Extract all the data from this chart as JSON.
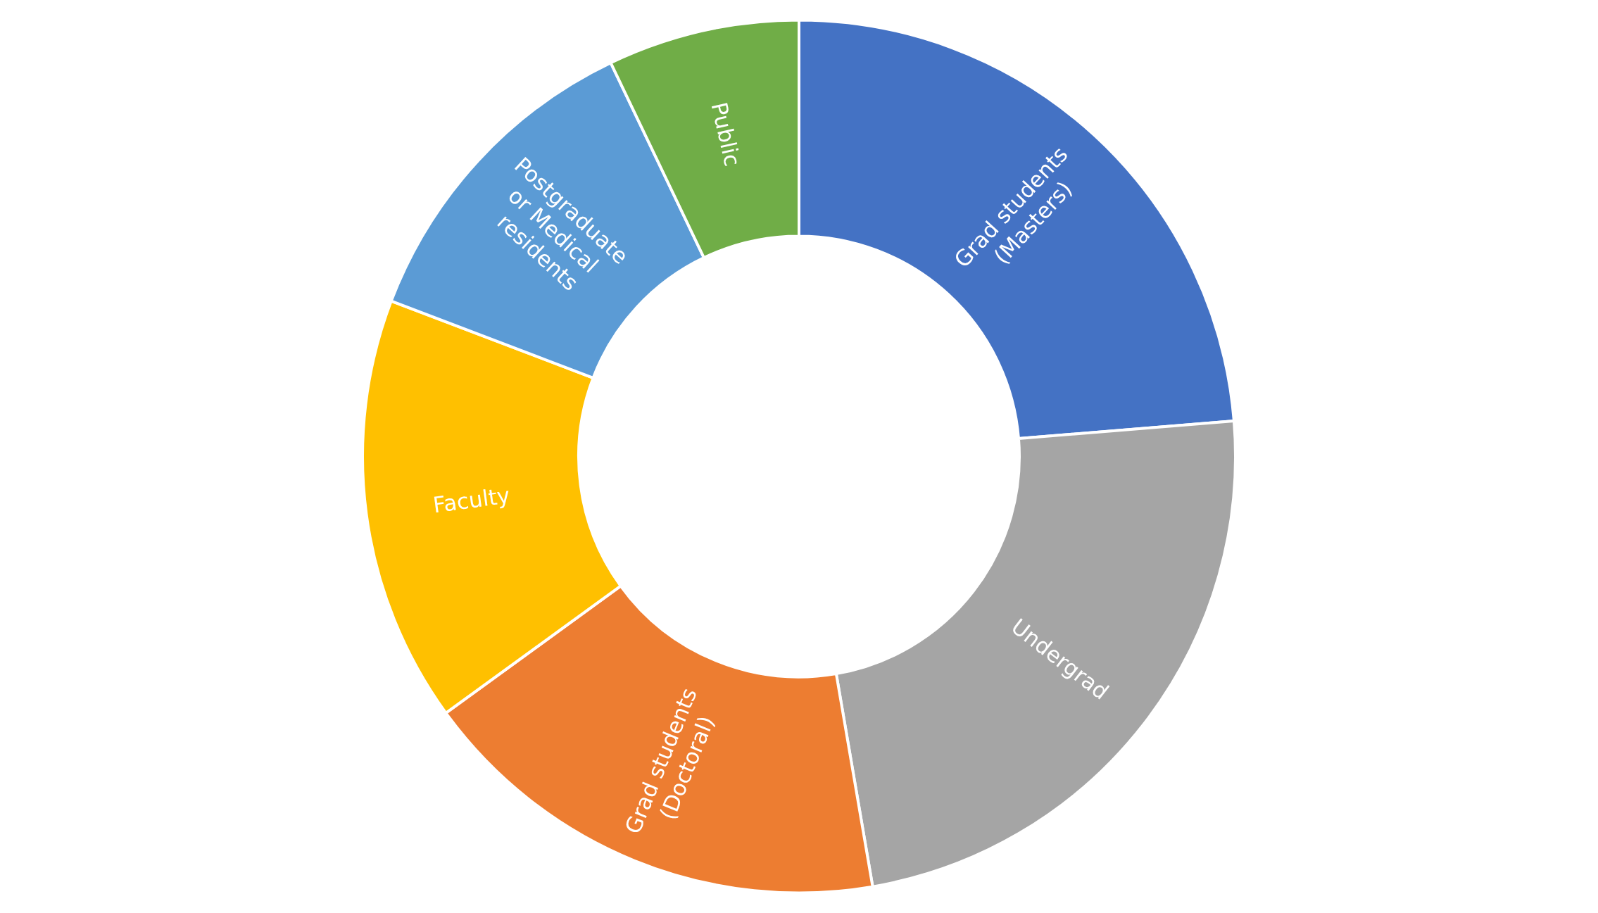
{
  "chart_data": {
    "type": "donut",
    "categories": [
      "Grad students (Masters)",
      "Undergrad",
      "Grad students (Doctoral)",
      "Faculty",
      "Postgraduate or Medical residents",
      "Public"
    ],
    "values": [
      23.7,
      23.6,
      17.7,
      15.8,
      12.1,
      7.1
    ],
    "colors": [
      "#4472c4",
      "#a5a5a5",
      "#ed7d31",
      "#ffc000",
      "#5b9bd5",
      "#70ad47"
    ],
    "legend": false
  }
}
